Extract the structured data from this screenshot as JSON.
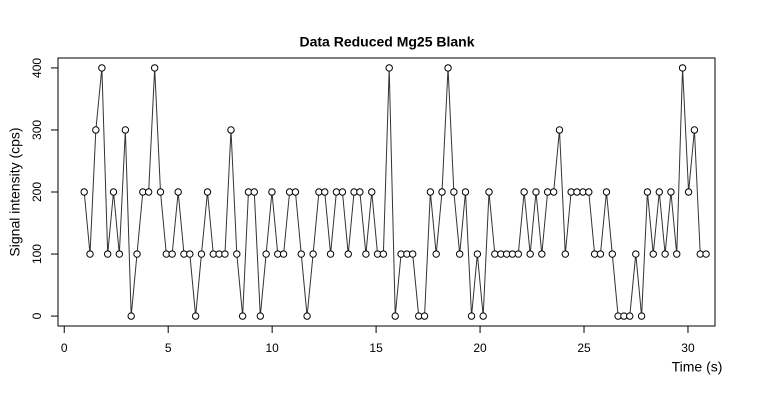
{
  "chart_data": {
    "type": "line",
    "title": "Data Reduced Mg25 Blank",
    "x_label": "Time (s)",
    "y_label": "Signal intensity (cps)",
    "x": [
      0.96,
      1.24,
      1.52,
      1.81,
      2.09,
      2.37,
      2.65,
      2.94,
      3.22,
      3.5,
      3.78,
      4.06,
      4.35,
      4.63,
      4.91,
      5.19,
      5.48,
      5.76,
      6.04,
      6.32,
      6.6,
      6.89,
      7.17,
      7.45,
      7.73,
      8.02,
      8.3,
      8.58,
      8.86,
      9.14,
      9.43,
      9.71,
      9.99,
      10.27,
      10.55,
      10.84,
      11.12,
      11.4,
      11.68,
      11.97,
      12.25,
      12.53,
      12.81,
      13.09,
      13.38,
      13.66,
      13.94,
      14.22,
      14.51,
      14.79,
      15.07,
      15.35,
      15.63,
      15.92,
      16.2,
      16.48,
      16.76,
      17.05,
      17.33,
      17.61,
      17.89,
      18.17,
      18.46,
      18.74,
      19.02,
      19.3,
      19.59,
      19.87,
      20.15,
      20.43,
      20.71,
      21.0,
      21.28,
      21.56,
      21.84,
      22.12,
      22.41,
      22.69,
      22.97,
      23.25,
      23.54,
      23.82,
      24.1,
      24.38,
      24.66,
      24.95,
      25.23,
      25.51,
      25.79,
      26.08,
      26.36,
      26.64,
      26.92,
      27.2,
      27.49,
      27.77,
      28.05,
      28.33,
      28.62,
      28.9,
      29.18,
      29.46,
      29.74,
      30.03,
      30.31,
      30.59,
      30.87
    ],
    "values": [
      200,
      100,
      300,
      400,
      100,
      200,
      100,
      300,
      0,
      100,
      200,
      200,
      400,
      200,
      100,
      100,
      200,
      100,
      100,
      0,
      100,
      200,
      100,
      100,
      100,
      300,
      100,
      0,
      200,
      200,
      0,
      100,
      200,
      100,
      100,
      200,
      200,
      100,
      0,
      100,
      200,
      200,
      100,
      200,
      200,
      100,
      200,
      200,
      100,
      200,
      100,
      100,
      400,
      0,
      100,
      100,
      100,
      0,
      0,
      200,
      100,
      200,
      400,
      200,
      100,
      200,
      0,
      100,
      0,
      200,
      100,
      100,
      100,
      100,
      100,
      200,
      100,
      200,
      100,
      200,
      200,
      300,
      100,
      200,
      200,
      200,
      200,
      100,
      100,
      200,
      100,
      0,
      0,
      0,
      100,
      0,
      200,
      100,
      200,
      100,
      200,
      100,
      400,
      200,
      300,
      100,
      100
    ],
    "color": "#333333",
    "xlim": [
      -0.3,
      31.3
    ],
    "xticks": [
      0,
      5,
      10,
      15,
      20,
      25,
      30
    ],
    "ylim": [
      -16,
      416
    ],
    "yticks": [
      0,
      100,
      200,
      300,
      400
    ]
  }
}
